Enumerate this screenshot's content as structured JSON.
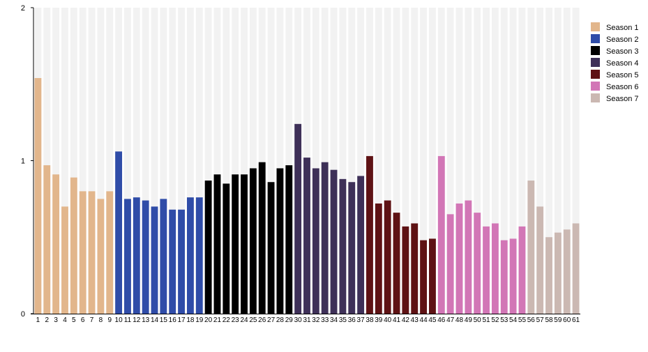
{
  "chart_data": {
    "type": "bar",
    "title": "",
    "xlabel": "",
    "ylabel": "",
    "ylim": [
      0,
      2
    ],
    "yticks": [
      "0",
      "1",
      "2"
    ],
    "grid": false,
    "legend_placement": "right",
    "categories": [
      "1",
      "2",
      "3",
      "4",
      "5",
      "6",
      "7",
      "8",
      "9",
      "10",
      "11",
      "12",
      "13",
      "14",
      "15",
      "16",
      "17",
      "18",
      "19",
      "20",
      "21",
      "22",
      "23",
      "24",
      "25",
      "26",
      "27",
      "28",
      "29",
      "30",
      "31",
      "32",
      "33",
      "34",
      "35",
      "36",
      "37",
      "38",
      "39",
      "40",
      "41",
      "42",
      "43",
      "44",
      "45",
      "46",
      "47",
      "48",
      "49",
      "50",
      "51",
      "52",
      "53",
      "54",
      "55",
      "56",
      "57",
      "58",
      "59",
      "60",
      "61"
    ],
    "values": [
      1.54,
      0.97,
      0.91,
      0.7,
      0.89,
      0.8,
      0.8,
      0.75,
      0.8,
      1.06,
      0.75,
      0.76,
      0.74,
      0.7,
      0.75,
      0.68,
      0.68,
      0.76,
      0.76,
      0.87,
      0.91,
      0.85,
      0.91,
      0.91,
      0.95,
      0.99,
      0.86,
      0.95,
      0.97,
      1.24,
      1.02,
      0.95,
      0.99,
      0.94,
      0.88,
      0.86,
      0.9,
      1.03,
      0.72,
      0.74,
      0.66,
      0.57,
      0.59,
      0.48,
      0.49,
      1.03,
      0.65,
      0.72,
      0.74,
      0.66,
      0.57,
      0.59,
      0.48,
      0.49,
      0.57,
      0.87,
      0.7,
      0.5,
      0.53,
      0.55,
      0.59
    ],
    "series": [
      {
        "name": "Season 1",
        "color": "#e2b68c",
        "range": [
          1,
          9
        ]
      },
      {
        "name": "Season 2",
        "color": "#2f4ca8",
        "range": [
          10,
          19
        ]
      },
      {
        "name": "Season 3",
        "color": "#000000",
        "range": [
          20,
          29
        ]
      },
      {
        "name": "Season 4",
        "color": "#3e3058",
        "range": [
          30,
          37
        ]
      },
      {
        "name": "Season 5",
        "color": "#5e1214",
        "range": [
          38,
          45
        ]
      },
      {
        "name": "Season 6",
        "color": "#d276b6",
        "range": [
          46,
          55
        ]
      },
      {
        "name": "Season 7",
        "color": "#cbb8b2",
        "range": [
          56,
          61
        ]
      }
    ]
  }
}
